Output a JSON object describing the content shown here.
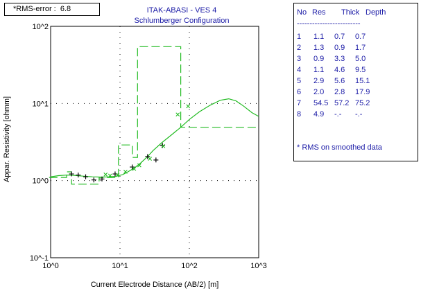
{
  "rms_label": "*RMS-error :  6.8",
  "colors": {
    "curve": "#22bb22",
    "text": "#1a1aa6",
    "frame": "#000000",
    "grid": "#000000"
  },
  "layer_table": {
    "headers": [
      "No",
      "Res",
      "Thick",
      "Depth"
    ],
    "separator": "-------------------------",
    "rows": [
      [
        "1",
        "1.1",
        "0.7",
        "0.7"
      ],
      [
        "2",
        "1.3",
        "0.9",
        "1.7"
      ],
      [
        "3",
        "0.9",
        "3.3",
        "5.0"
      ],
      [
        "4",
        "1.1",
        "4.6",
        "9.5"
      ],
      [
        "5",
        "2.9",
        "5.6",
        "15.1"
      ],
      [
        "6",
        "2.0",
        "2.8",
        "17.9"
      ],
      [
        "7",
        "54.5",
        "57.2",
        "75.2"
      ],
      [
        "8",
        "4.9",
        "-.-",
        "-.-"
      ]
    ],
    "note": "* RMS on smoothed data"
  },
  "chart_data": {
    "type": "line",
    "title": "ITAK-ABASI - VES 4",
    "subtitle": "Schlumberger Configuration",
    "xlabel": "Current Electrode Distance (AB/2) [m]",
    "ylabel": "Appar. Resistivity [ohmm]",
    "x_scale": "log",
    "y_scale": "log",
    "xlim": [
      1,
      1000
    ],
    "ylim": [
      0.1,
      100
    ],
    "x_ticks": [
      "10^0",
      "10^1",
      "10^2",
      "10^3"
    ],
    "y_ticks": [
      "10^-1",
      "10^0",
      "10^1",
      "10^2"
    ],
    "grid": "dotted",
    "series": [
      {
        "kind": "model-curve",
        "style": "solid",
        "points": [
          [
            1.0,
            1.12
          ],
          [
            1.3,
            1.16
          ],
          [
            1.7,
            1.18
          ],
          [
            2.2,
            1.17
          ],
          [
            3.0,
            1.14
          ],
          [
            4.0,
            1.12
          ],
          [
            5.5,
            1.11
          ],
          [
            7.0,
            1.12
          ],
          [
            9.0,
            1.14
          ],
          [
            11,
            1.2
          ],
          [
            13,
            1.3
          ],
          [
            16,
            1.45
          ],
          [
            20,
            1.7
          ],
          [
            25,
            2.05
          ],
          [
            30,
            2.45
          ],
          [
            40,
            3.1
          ],
          [
            55,
            3.9
          ],
          [
            75,
            4.9
          ],
          [
            100,
            6.2
          ],
          [
            140,
            7.8
          ],
          [
            200,
            9.5
          ],
          [
            280,
            11.0
          ],
          [
            370,
            11.5
          ],
          [
            470,
            10.8
          ],
          [
            600,
            9.3
          ],
          [
            800,
            7.6
          ],
          [
            1000,
            6.8
          ]
        ]
      },
      {
        "kind": "layer-model",
        "style": "dashed",
        "steps": [
          {
            "res": 1.1,
            "top": 0.95,
            "bottom": 1.7
          },
          {
            "res": 1.3,
            "top": 1.7,
            "bottom": 2.0
          },
          {
            "res": 0.9,
            "top": 2.0,
            "bottom": 5.0
          },
          {
            "res": 1.1,
            "top": 5.0,
            "bottom": 9.5
          },
          {
            "res": 2.9,
            "top": 9.5,
            "bottom": 15.1
          },
          {
            "res": 2.0,
            "top": 15.1,
            "bottom": 17.9
          },
          {
            "res": 54.5,
            "top": 17.9,
            "bottom": 75.2
          },
          {
            "res": 4.9,
            "top": 75.2,
            "bottom": 1000
          }
        ]
      },
      {
        "kind": "observed",
        "marker": "+",
        "points": [
          [
            2.0,
            1.22
          ],
          [
            2.5,
            1.18
          ],
          [
            3.2,
            1.12
          ],
          [
            4.2,
            1.02
          ],
          [
            5.5,
            1.05
          ],
          [
            8.5,
            1.22
          ],
          [
            15,
            1.5
          ],
          [
            25,
            2.05
          ],
          [
            33,
            1.85
          ],
          [
            41,
            2.85
          ]
        ]
      },
      {
        "kind": "smoothed",
        "marker": "x",
        "points": [
          [
            6.2,
            1.2
          ],
          [
            7.2,
            1.16
          ],
          [
            9.2,
            1.18
          ],
          [
            12,
            1.3
          ],
          [
            16,
            1.42
          ],
          [
            19,
            1.58
          ],
          [
            27,
            1.92
          ],
          [
            42,
            2.8
          ],
          [
            68,
            7.2
          ],
          [
            96,
            9.2
          ]
        ]
      }
    ]
  }
}
